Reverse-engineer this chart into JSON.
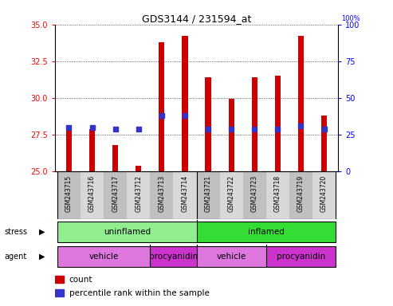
{
  "title": "GDS3144 / 231594_at",
  "samples": [
    "GSM243715",
    "GSM243716",
    "GSM243717",
    "GSM243712",
    "GSM243713",
    "GSM243714",
    "GSM243721",
    "GSM243722",
    "GSM243723",
    "GSM243718",
    "GSM243719",
    "GSM243720"
  ],
  "count_values": [
    27.9,
    27.9,
    26.8,
    25.4,
    33.8,
    34.2,
    31.4,
    29.95,
    31.4,
    31.5,
    34.2,
    28.8
  ],
  "percentile_values": [
    30,
    30,
    29,
    29,
    38,
    38,
    29,
    29,
    29,
    29,
    31,
    29
  ],
  "ylim_left": [
    25,
    35
  ],
  "ylim_right": [
    0,
    100
  ],
  "yticks_left": [
    25,
    27.5,
    30,
    32.5,
    35
  ],
  "yticks_right": [
    0,
    25,
    50,
    75,
    100
  ],
  "bar_color": "#cc0000",
  "dot_color": "#3333cc",
  "bar_bottom": 25,
  "bar_width": 0.25,
  "uninflamed_color": "#90ee90",
  "inflamed_color": "#33dd33",
  "vehicle_color": "#dd77dd",
  "procyanidin_color": "#cc33cc",
  "legend_count_color": "#cc0000",
  "legend_dot_color": "#3333cc",
  "grid_color": "#000000",
  "label_bg_dark": "#c0c0c0",
  "label_bg_light": "#d8d8d8"
}
